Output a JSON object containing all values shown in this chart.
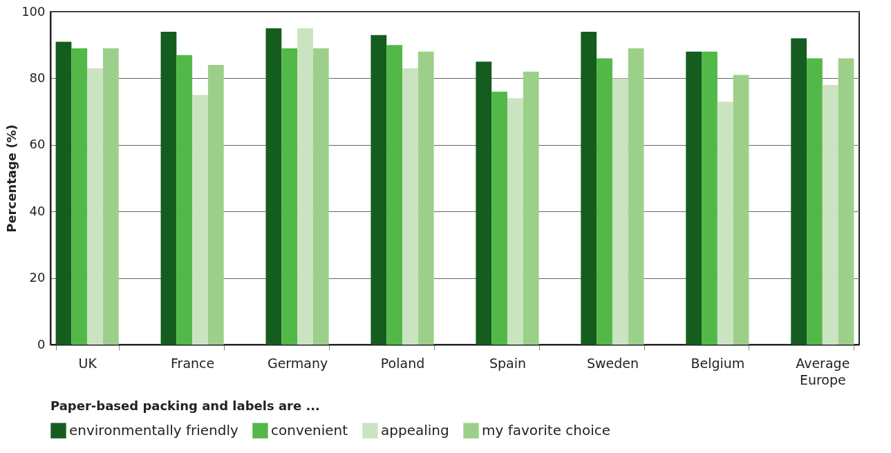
{
  "chart_data": {
    "type": "bar",
    "ylabel": "Percentage (%)",
    "legend_title": "Paper-based packing and labels are ...",
    "categories": [
      "UK",
      "France",
      "Germany",
      "Poland",
      "Spain",
      "Sweden",
      "Belgium",
      "Average Europe"
    ],
    "series": [
      {
        "name": "environmentally friendly",
        "color": "#155d1f",
        "values": [
          91,
          94,
          95,
          93,
          85,
          94,
          88,
          92
        ]
      },
      {
        "name": "convenient",
        "color": "#52b848",
        "values": [
          89,
          87,
          89,
          90,
          76,
          86,
          88,
          86
        ]
      },
      {
        "name": "appealing",
        "color": "#cae4c2",
        "values": [
          83,
          75,
          95,
          83,
          74,
          80,
          73,
          78
        ]
      },
      {
        "name": "my favorite choice",
        "color": "#9cd08a",
        "values": [
          89,
          84,
          89,
          88,
          82,
          89,
          81,
          86
        ]
      }
    ],
    "ylim": [
      0,
      100
    ],
    "yticks": [
      0,
      20,
      40,
      60,
      80,
      100
    ],
    "grid": "y",
    "legend": "bottom"
  }
}
